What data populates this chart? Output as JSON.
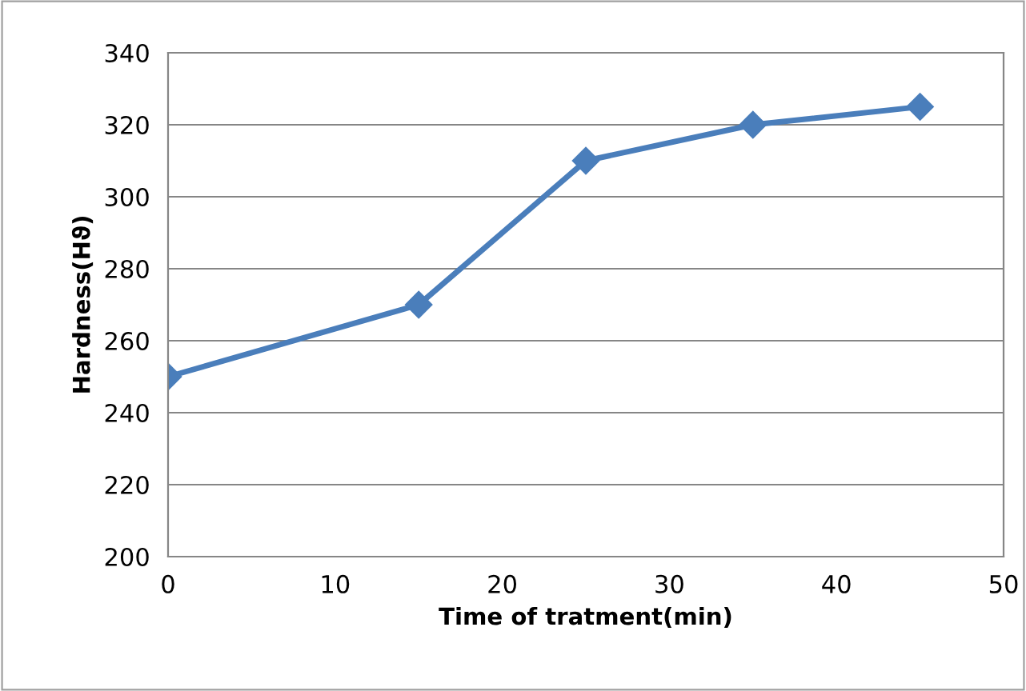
{
  "chart_data": {
    "type": "line",
    "xlabel": "Time of tratment(min)",
    "ylabel": "Hardness(Hϑ)",
    "x": [
      0,
      15,
      25,
      35,
      45
    ],
    "series": [
      {
        "color": "#4a7ebb",
        "values": [
          250,
          270,
          310,
          320,
          325
        ]
      }
    ],
    "xlim": [
      0,
      50
    ],
    "xticks": [
      0,
      10,
      20,
      30,
      40,
      50
    ],
    "ylim": [
      200,
      340
    ],
    "yticks": [
      200,
      220,
      240,
      260,
      280,
      300,
      320,
      340
    ],
    "grid": "y",
    "marker": "diamond",
    "line_style": "solid",
    "legend": false
  }
}
